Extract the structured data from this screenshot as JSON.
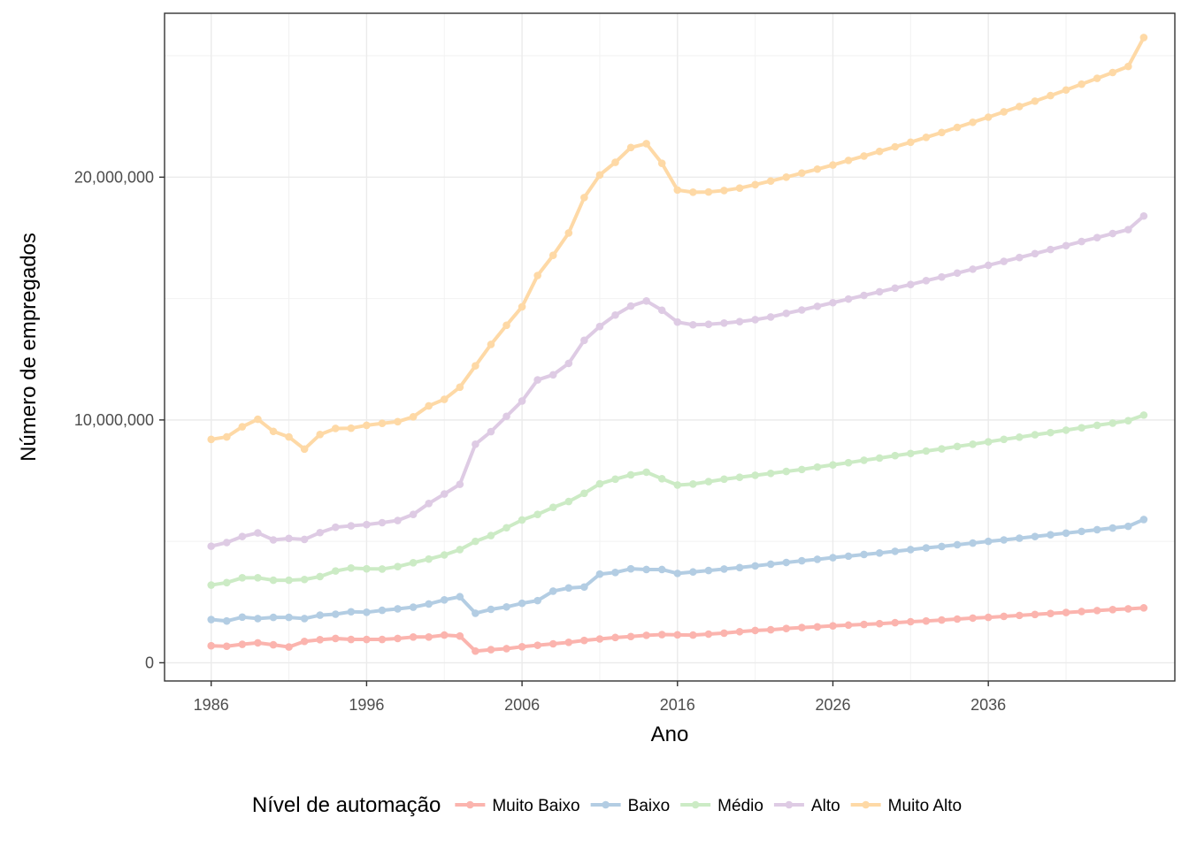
{
  "chart_data": {
    "type": "line",
    "title": "",
    "xlabel": "Ano",
    "ylabel": "Número de empregados",
    "xlim": [
      1983,
      2048
    ],
    "ylim": [
      -750000,
      26750000
    ],
    "x_ticks": [
      1986,
      1996,
      2006,
      2016,
      2026,
      2036
    ],
    "y_ticks": [
      0,
      10000000,
      20000000
    ],
    "y_tick_labels": [
      "0",
      "10,000,000",
      "20,000,000"
    ],
    "grid": true,
    "legend": {
      "title": "Nível de automação",
      "position": "bottom"
    },
    "x": [
      1986,
      1987,
      1988,
      1989,
      1990,
      1991,
      1992,
      1993,
      1994,
      1995,
      1996,
      1997,
      1998,
      1999,
      2000,
      2001,
      2002,
      2003,
      2004,
      2005,
      2006,
      2007,
      2008,
      2009,
      2010,
      2011,
      2012,
      2013,
      2014,
      2015,
      2016,
      2017,
      2018,
      2019,
      2020,
      2021,
      2022,
      2023,
      2024,
      2025,
      2026,
      2027,
      2028,
      2029,
      2030,
      2031,
      2032,
      2033,
      2034,
      2035,
      2036,
      2037,
      2038,
      2039,
      2040,
      2041,
      2042,
      2043,
      2044,
      2045,
      2046
    ],
    "series": [
      {
        "name": "Muito Baixo",
        "color": "#fbb4ae",
        "values": [
          700000,
          680000,
          760000,
          820000,
          740000,
          650000,
          880000,
          950000,
          1000000,
          960000,
          960000,
          960000,
          1000000,
          1060000,
          1060000,
          1140000,
          1100000,
          480000,
          540000,
          580000,
          660000,
          720000,
          780000,
          840000,
          920000,
          980000,
          1040000,
          1080000,
          1130000,
          1160000,
          1150000,
          1140000,
          1180000,
          1220000,
          1280000,
          1330000,
          1360000,
          1410000,
          1450000,
          1480000,
          1520000,
          1550000,
          1580000,
          1610000,
          1650000,
          1690000,
          1720000,
          1760000,
          1800000,
          1840000,
          1870000,
          1910000,
          1950000,
          1990000,
          2030000,
          2070000,
          2110000,
          2150000,
          2190000,
          2220000,
          2260000
        ]
      },
      {
        "name": "Baixo",
        "color": "#b3cde3",
        "values": [
          1780000,
          1720000,
          1880000,
          1820000,
          1870000,
          1870000,
          1820000,
          1960000,
          2000000,
          2100000,
          2080000,
          2160000,
          2220000,
          2290000,
          2420000,
          2590000,
          2720000,
          2040000,
          2200000,
          2300000,
          2450000,
          2560000,
          2950000,
          3080000,
          3120000,
          3650000,
          3720000,
          3870000,
          3840000,
          3840000,
          3680000,
          3740000,
          3800000,
          3860000,
          3920000,
          3990000,
          4060000,
          4130000,
          4200000,
          4260000,
          4330000,
          4390000,
          4460000,
          4520000,
          4590000,
          4660000,
          4730000,
          4790000,
          4860000,
          4930000,
          5000000,
          5060000,
          5130000,
          5200000,
          5270000,
          5340000,
          5410000,
          5480000,
          5550000,
          5620000,
          5900000
        ]
      },
      {
        "name": "Médio",
        "color": "#ccebc5",
        "values": [
          3200000,
          3300000,
          3500000,
          3500000,
          3400000,
          3400000,
          3430000,
          3550000,
          3780000,
          3900000,
          3870000,
          3860000,
          3960000,
          4120000,
          4270000,
          4440000,
          4660000,
          5000000,
          5240000,
          5560000,
          5880000,
          6110000,
          6400000,
          6640000,
          6980000,
          7370000,
          7560000,
          7740000,
          7850000,
          7580000,
          7320000,
          7360000,
          7460000,
          7560000,
          7640000,
          7720000,
          7800000,
          7880000,
          7960000,
          8060000,
          8150000,
          8240000,
          8340000,
          8430000,
          8530000,
          8620000,
          8720000,
          8810000,
          8910000,
          9000000,
          9100000,
          9200000,
          9290000,
          9390000,
          9480000,
          9580000,
          9680000,
          9780000,
          9870000,
          9970000,
          10200000
        ]
      },
      {
        "name": "Alto",
        "color": "#decbe4",
        "values": [
          4800000,
          4950000,
          5200000,
          5350000,
          5060000,
          5120000,
          5080000,
          5360000,
          5580000,
          5640000,
          5690000,
          5770000,
          5860000,
          6110000,
          6560000,
          6950000,
          7350000,
          9000000,
          9520000,
          10150000,
          10780000,
          11650000,
          11860000,
          12330000,
          13280000,
          13850000,
          14320000,
          14690000,
          14900000,
          14520000,
          14030000,
          13920000,
          13940000,
          13990000,
          14050000,
          14130000,
          14240000,
          14390000,
          14530000,
          14680000,
          14830000,
          14980000,
          15130000,
          15280000,
          15430000,
          15580000,
          15740000,
          15890000,
          16050000,
          16210000,
          16370000,
          16530000,
          16690000,
          16850000,
          17020000,
          17180000,
          17350000,
          17510000,
          17680000,
          17840000,
          18400000
        ]
      },
      {
        "name": "Muito Alto",
        "color": "#fed9a6",
        "values": [
          9200000,
          9300000,
          9720000,
          10030000,
          9530000,
          9300000,
          8800000,
          9400000,
          9650000,
          9660000,
          9780000,
          9860000,
          9930000,
          10130000,
          10580000,
          10850000,
          11350000,
          12230000,
          13110000,
          13900000,
          14660000,
          15950000,
          16780000,
          17700000,
          19160000,
          20090000,
          20610000,
          21220000,
          21380000,
          20570000,
          19470000,
          19380000,
          19390000,
          19450000,
          19550000,
          19690000,
          19840000,
          20000000,
          20170000,
          20330000,
          20500000,
          20690000,
          20870000,
          21060000,
          21250000,
          21440000,
          21640000,
          21840000,
          22050000,
          22260000,
          22470000,
          22690000,
          22910000,
          23130000,
          23360000,
          23590000,
          23830000,
          24070000,
          24310000,
          24560000,
          25750000
        ]
      }
    ]
  }
}
